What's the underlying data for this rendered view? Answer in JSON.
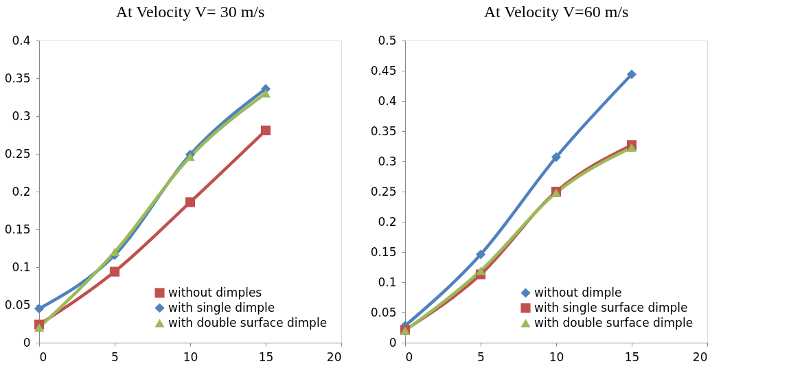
{
  "chart_data": [
    {
      "type": "line",
      "title": "At Velocity V= 30 m/s",
      "x": [
        0,
        5,
        10,
        15
      ],
      "xlim": [
        0,
        20
      ],
      "xticks": [
        0,
        5,
        10,
        15,
        20
      ],
      "ylim": [
        0,
        0.4
      ],
      "yticks": [
        0,
        0.05,
        0.1,
        0.15,
        0.2,
        0.25,
        0.3,
        0.35,
        0.4
      ],
      "grid": false,
      "legend": "bottom right",
      "series": [
        {
          "name": "without dimples",
          "color": "#c0504d",
          "marker": "square",
          "values": [
            0.024,
            0.094,
            0.186,
            0.281
          ]
        },
        {
          "name": "with single dimple",
          "color": "#4f81bd",
          "marker": "diamond",
          "values": [
            0.045,
            0.116,
            0.249,
            0.336
          ]
        },
        {
          "name": "with double surface dimple",
          "color": "#9bbb59",
          "marker": "triangle",
          "values": [
            0.02,
            0.12,
            0.246,
            0.33
          ]
        }
      ]
    },
    {
      "type": "line",
      "title": "At Velocity V=60 m/s",
      "x": [
        0,
        5,
        10,
        15
      ],
      "xlim": [
        0,
        20
      ],
      "xticks": [
        0,
        5,
        10,
        15,
        20
      ],
      "ylim": [
        0,
        0.5
      ],
      "yticks": [
        0,
        0.05,
        0.1,
        0.15,
        0.2,
        0.25,
        0.3,
        0.35,
        0.4,
        0.45,
        0.5
      ],
      "grid": false,
      "legend": "bottom right",
      "series": [
        {
          "name": "without dimple",
          "color": "#4f81bd",
          "marker": "diamond",
          "values": [
            0.028,
            0.146,
            0.307,
            0.444
          ]
        },
        {
          "name": "with single surface dimple",
          "color": "#c0504d",
          "marker": "square",
          "values": [
            0.021,
            0.113,
            0.25,
            0.327
          ]
        },
        {
          "name": "with double surface dimple",
          "color": "#9bbb59",
          "marker": "triangle",
          "values": [
            0.02,
            0.119,
            0.248,
            0.323
          ]
        }
      ]
    }
  ]
}
